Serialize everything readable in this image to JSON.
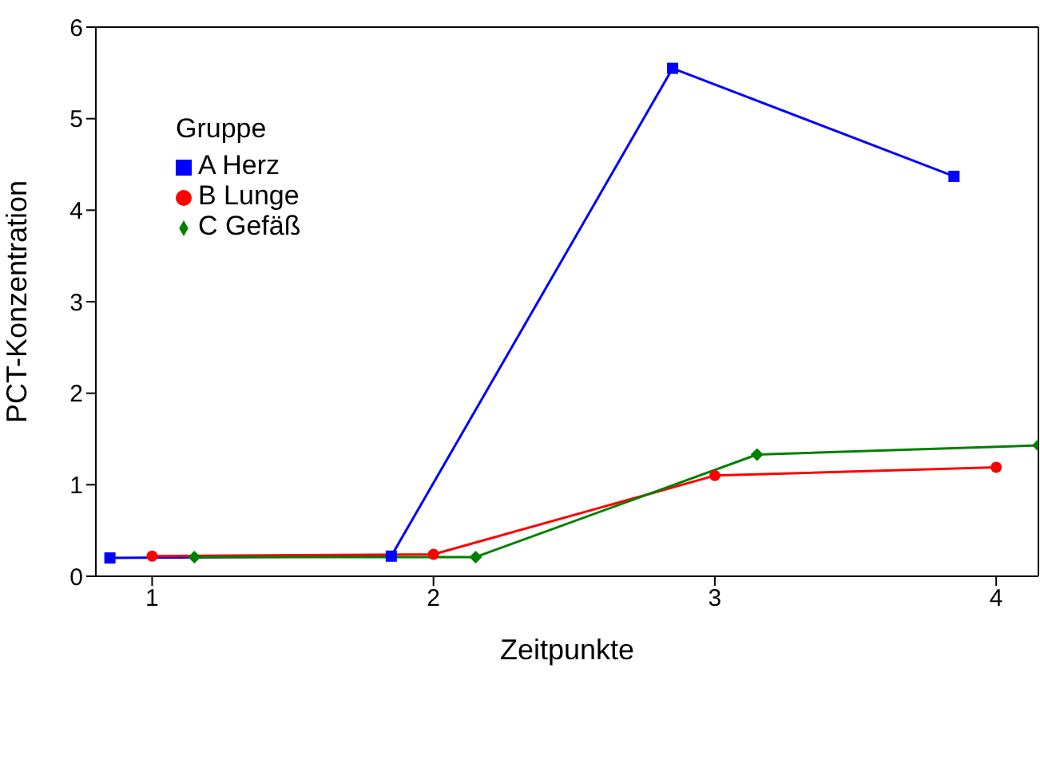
{
  "chart_data": {
    "type": "line",
    "xlabel": "Zeitpunkte",
    "ylabel": "PCT-Konzentration",
    "legend_title": "Gruppe",
    "legend": "top left",
    "grid": false,
    "xlim": [
      0.8,
      4.15
    ],
    "xticks": [
      1,
      2,
      3,
      4
    ],
    "ylim": [
      0,
      6
    ],
    "yticks": [
      0,
      1,
      2,
      3,
      4,
      5,
      6
    ],
    "series": [
      {
        "name": "A Herz",
        "color": "#0000ff",
        "marker": "square",
        "x": [
          0.85,
          1.85,
          2.85,
          3.85
        ],
        "values": [
          0.2,
          0.22,
          5.55,
          4.37
        ]
      },
      {
        "name": "B Lunge",
        "color": "#ff0000",
        "marker": "circle",
        "x": [
          1,
          2,
          3,
          4
        ],
        "values": [
          0.22,
          0.24,
          1.1,
          1.19
        ]
      },
      {
        "name": "C Gefäß",
        "color": "#008000",
        "marker": "diamond",
        "x": [
          1.15,
          2.15,
          3.15,
          4.15
        ],
        "values": [
          0.21,
          0.21,
          1.33,
          1.43
        ]
      }
    ]
  }
}
